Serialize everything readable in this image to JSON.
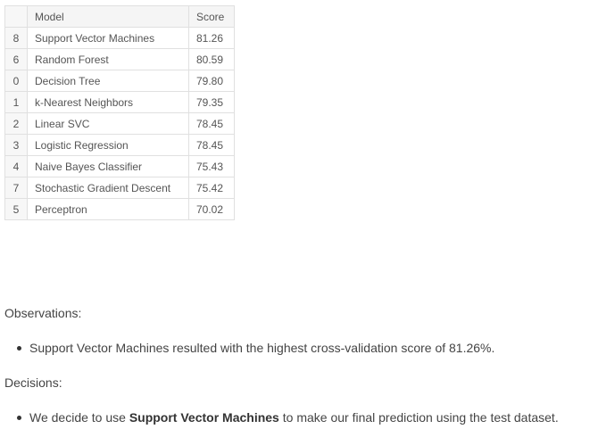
{
  "table": {
    "headers": {
      "index": "",
      "model": "Model",
      "score": "Score"
    },
    "rows": [
      {
        "index": "8",
        "model": "Support Vector Machines",
        "score": "81.26"
      },
      {
        "index": "6",
        "model": "Random Forest",
        "score": "80.59"
      },
      {
        "index": "0",
        "model": "Decision Tree",
        "score": "79.80"
      },
      {
        "index": "1",
        "model": "k-Nearest Neighbors",
        "score": "79.35"
      },
      {
        "index": "2",
        "model": "Linear SVC",
        "score": "78.45"
      },
      {
        "index": "3",
        "model": "Logistic Regression",
        "score": "78.45"
      },
      {
        "index": "4",
        "model": "Naive Bayes Classifier",
        "score": "75.43"
      },
      {
        "index": "7",
        "model": "Stochastic Gradient Descent",
        "score": "75.42"
      },
      {
        "index": "5",
        "model": "Perceptron",
        "score": "70.02"
      }
    ]
  },
  "observations": {
    "heading": "Observations:",
    "bullet": "Support Vector Machines resulted with the highest cross-validation score of 81.26%."
  },
  "decisions": {
    "heading": "Decisions:",
    "bullet_prefix": "We decide to use ",
    "bullet_bold": "Support Vector Machines",
    "bullet_suffix": " to make our final prediction using the test dataset."
  }
}
